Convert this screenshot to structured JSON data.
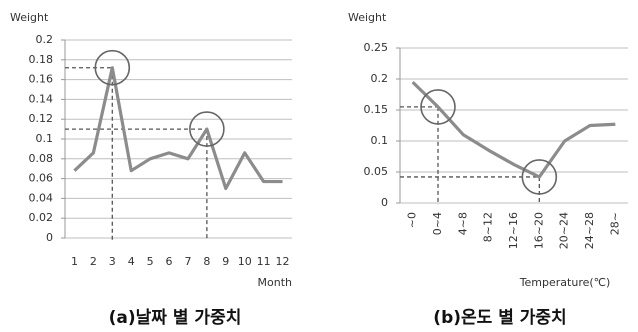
{
  "chart_data": [
    {
      "type": "line",
      "y_label": "Weight",
      "x_label": "Month",
      "title": "(a)날짜 별 가중치",
      "categories": [
        1,
        2,
        3,
        4,
        5,
        6,
        7,
        8,
        9,
        10,
        11,
        12
      ],
      "values": [
        0.068,
        0.086,
        0.172,
        0.068,
        0.08,
        0.086,
        0.08,
        0.11,
        0.05,
        0.086,
        0.057,
        0.057
      ],
      "color": "#8c8c8c",
      "ylim": [
        0,
        0.2
      ],
      "yticks": [
        0,
        0.02,
        0.04,
        0.06,
        0.08,
        0.1,
        0.12,
        0.14,
        0.16,
        0.18,
        0.2
      ],
      "grid": true,
      "highlight": [
        2,
        7
      ]
    },
    {
      "type": "line",
      "y_label": "Weight",
      "x_label": "Temperature(℃)",
      "title": "(b)온도 별 가중치",
      "categories": [
        "~0",
        "0~4",
        "4~8",
        "8~12",
        "12~16",
        "16~20",
        "20~24",
        "24~28",
        "28~"
      ],
      "values": [
        0.195,
        0.155,
        0.11,
        0.085,
        0.062,
        0.042,
        0.1,
        0.125,
        0.127
      ],
      "color": "#8c8c8c",
      "ylim": [
        0,
        0.25
      ],
      "yticks": [
        0,
        0.05,
        0.1,
        0.15,
        0.2,
        0.25
      ],
      "grid": true,
      "highlight": [
        1,
        5
      ],
      "rotate_labels": true
    }
  ]
}
